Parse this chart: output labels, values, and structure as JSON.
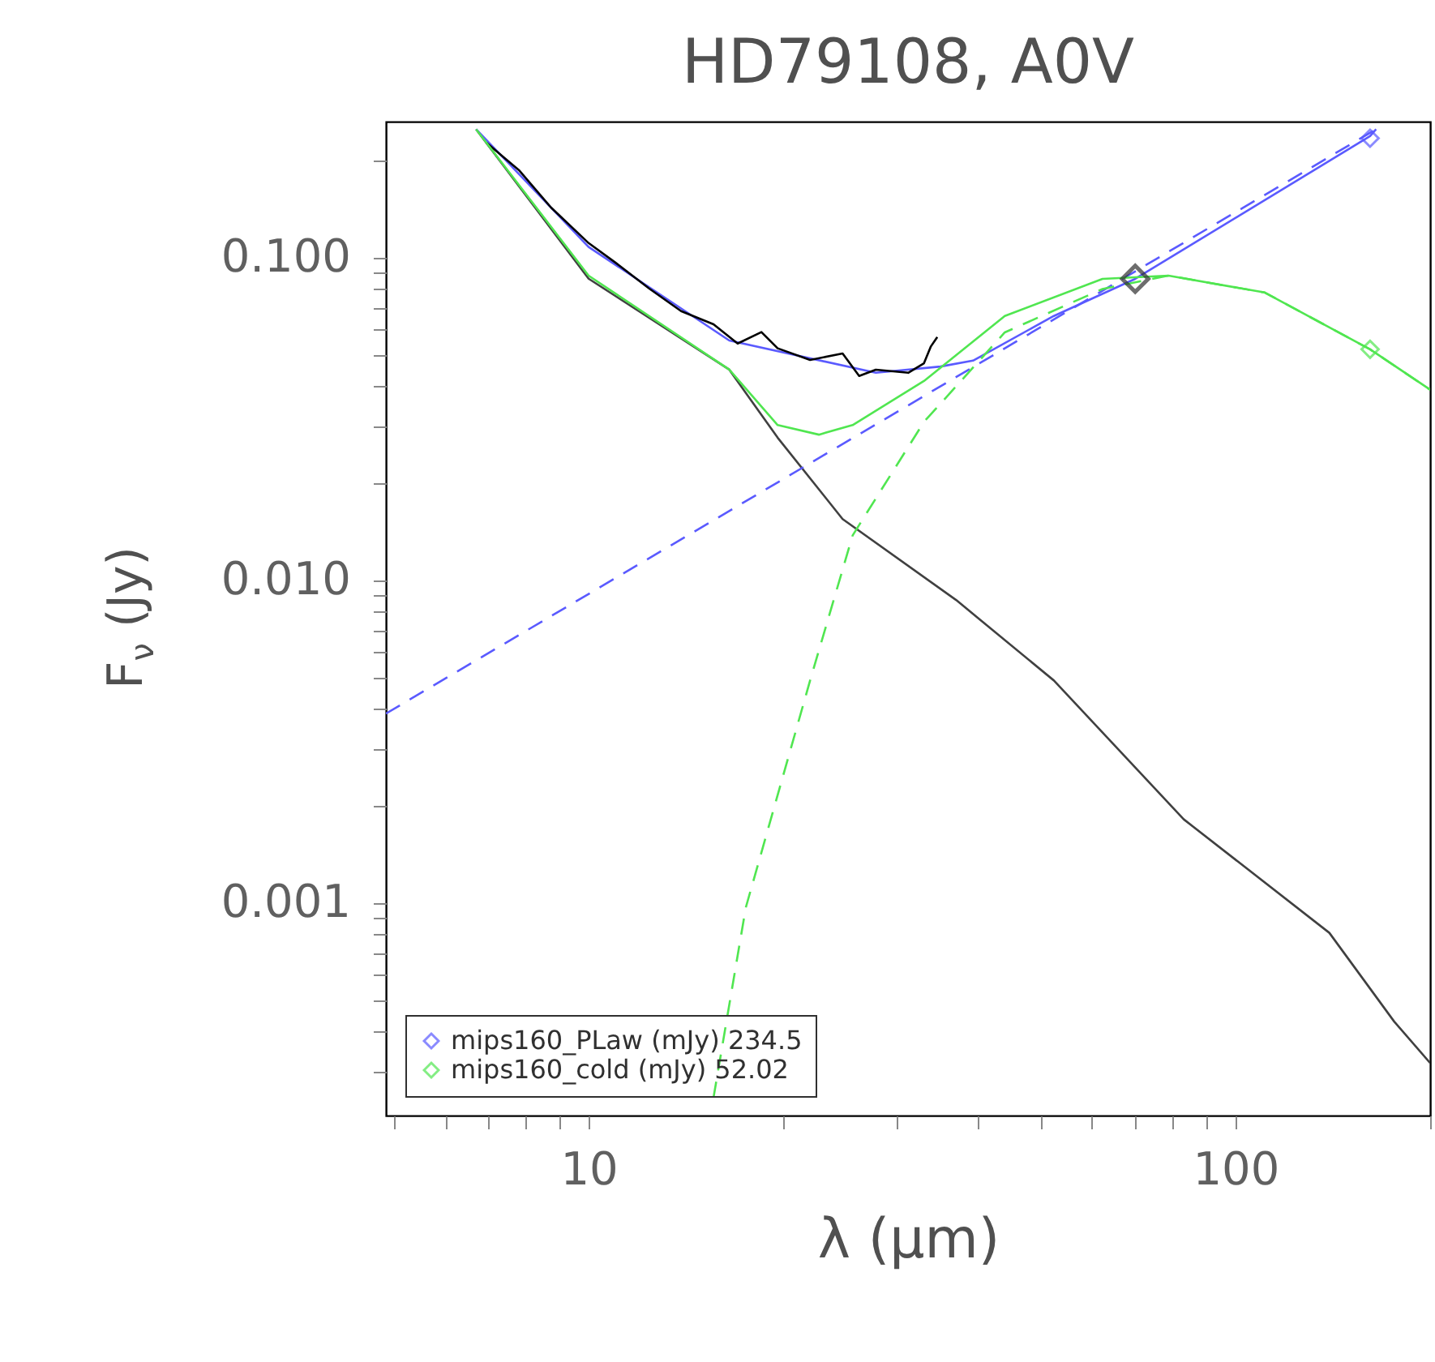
{
  "chart_data": {
    "type": "line",
    "title": "HD79108, A0V",
    "xlabel": "λ (μm)",
    "ylabel": "F$_{ν}$ (Jy)",
    "log": "xy",
    "xlim": [
      4.86,
      200
    ],
    "ylim": [
      0.00022,
      0.264
    ],
    "xticks": [
      {
        "value": 5,
        "label": null
      },
      {
        "value": 6,
        "label": null
      },
      {
        "value": 7,
        "label": null
      },
      {
        "value": 8,
        "label": null
      },
      {
        "value": 9,
        "label": null
      },
      10,
      {
        "value": 20,
        "label": null
      },
      {
        "value": 30,
        "label": null
      },
      {
        "value": 40,
        "label": null
      },
      {
        "value": 50,
        "label": null
      },
      {
        "value": 60,
        "label": null
      },
      {
        "value": 70,
        "label": null
      },
      {
        "value": 80,
        "label": null
      },
      {
        "value": 90,
        "label": null
      },
      100,
      {
        "value": 200,
        "label": null
      }
    ],
    "yticks": [
      {
        "value": 0.0003,
        "label": null
      },
      {
        "value": 0.0004,
        "label": null
      },
      {
        "value": 0.0005,
        "label": null
      },
      {
        "value": 0.0006,
        "label": null
      },
      {
        "value": 0.0007,
        "label": null
      },
      {
        "value": 0.0008,
        "label": null
      },
      {
        "value": 0.0009,
        "label": null
      },
      {
        "value": 0.001,
        "label": "0.001"
      },
      {
        "value": 0.002,
        "label": null
      },
      {
        "value": 0.003,
        "label": null
      },
      {
        "value": 0.004,
        "label": null
      },
      {
        "value": 0.005,
        "label": null
      },
      {
        "value": 0.006,
        "label": null
      },
      {
        "value": 0.007,
        "label": null
      },
      {
        "value": 0.008,
        "label": null
      },
      {
        "value": 0.009,
        "label": null
      },
      {
        "value": 0.01,
        "label": "0.010"
      },
      {
        "value": 0.02,
        "label": null
      },
      {
        "value": 0.03,
        "label": null
      },
      {
        "value": 0.04,
        "label": null
      },
      {
        "value": 0.05,
        "label": null
      },
      {
        "value": 0.06,
        "label": null
      },
      {
        "value": 0.07,
        "label": null
      },
      {
        "value": 0.08,
        "label": null
      },
      {
        "value": 0.09,
        "label": null
      },
      {
        "value": 0.1,
        "label": "0.100"
      },
      {
        "value": 0.2,
        "label": null
      }
    ],
    "grid": false,
    "legend": "bottom left",
    "series": [
      {
        "color": "#404040",
        "x": [
          6.7,
          10,
          16.5,
          19.6,
          24.7,
          37.0,
          52.4,
          83.2,
          139.7,
          176,
          200
        ],
        "values": [
          0.25,
          0.0861,
          0.045,
          0.0277,
          0.0155,
          0.0087,
          0.0049,
          0.00182,
          0.00081,
          0.00043,
          0.00032
        ]
      },
      {
        "color": "#5a5aff",
        "x": [
          6.7,
          10,
          16.5,
          27.8,
          35.0,
          39.3,
          52.4,
          70,
          161.5,
          165
        ],
        "values": [
          0.25,
          0.108,
          0.0554,
          0.044,
          0.046,
          0.048,
          0.066,
          0.086,
          0.238,
          0.25
        ]
      },
      {
        "color": "#000000",
        "x": [
          6.95,
          7.8,
          8.75,
          10,
          11.0,
          12.4,
          13.9,
          15.6,
          17.0,
          18.5,
          19.6,
          22.0,
          24.7,
          26.2,
          27.8,
          31.2,
          33.0,
          33.8,
          34.6
        ],
        "values": [
          0.227,
          0.187,
          0.143,
          0.111,
          0.0966,
          0.0803,
          0.0683,
          0.0622,
          0.0542,
          0.0588,
          0.0524,
          0.0482,
          0.0505,
          0.043,
          0.045,
          0.044,
          0.0471,
          0.053,
          0.0568
        ]
      },
      {
        "color": "#5a5aff",
        "line_style": "dashed",
        "x": [
          4.86,
          165
        ],
        "values": [
          0.00387,
          0.25
        ]
      },
      {
        "color": "#50e650",
        "x": [
          6.7,
          10,
          16.5,
          19.6,
          22.7,
          25.6,
          33.0,
          44.0,
          62.3,
          78.8,
          111,
          161.5,
          200
        ],
        "values": [
          0.25,
          0.088,
          0.045,
          0.0303,
          0.0283,
          0.0303,
          0.0415,
          0.066,
          0.086,
          0.088,
          0.078,
          0.052,
          0.039
        ]
      },
      {
        "color": "#50e650",
        "line_style": "dashed",
        "x": [
          15.6,
          17.5,
          22.0,
          25.6,
          33.0,
          44.0,
          62.3,
          78.8,
          111,
          161.5,
          200
        ],
        "values": [
          0.00025,
          0.00097,
          0.0049,
          0.0138,
          0.031,
          0.0587,
          0.08,
          0.088,
          0.078,
          0.052,
          0.039
        ]
      },
      {
        "type": "scatter",
        "marker": "diamond",
        "color": "#303030",
        "x": [
          70
        ],
        "values": [
          0.086
        ]
      },
      {
        "type": "scatter",
        "marker": "diamond",
        "name": "mips160_PLaw (mJy) 234.5",
        "color": "#5a5aff",
        "x": [
          161.5
        ],
        "values": [
          0.2345
        ]
      },
      {
        "type": "scatter",
        "marker": "diamond",
        "name": "mips160_cold (mJy) 52.02",
        "color": "#50e650",
        "x": [
          161.5
        ],
        "values": [
          0.05202
        ]
      }
    ]
  }
}
